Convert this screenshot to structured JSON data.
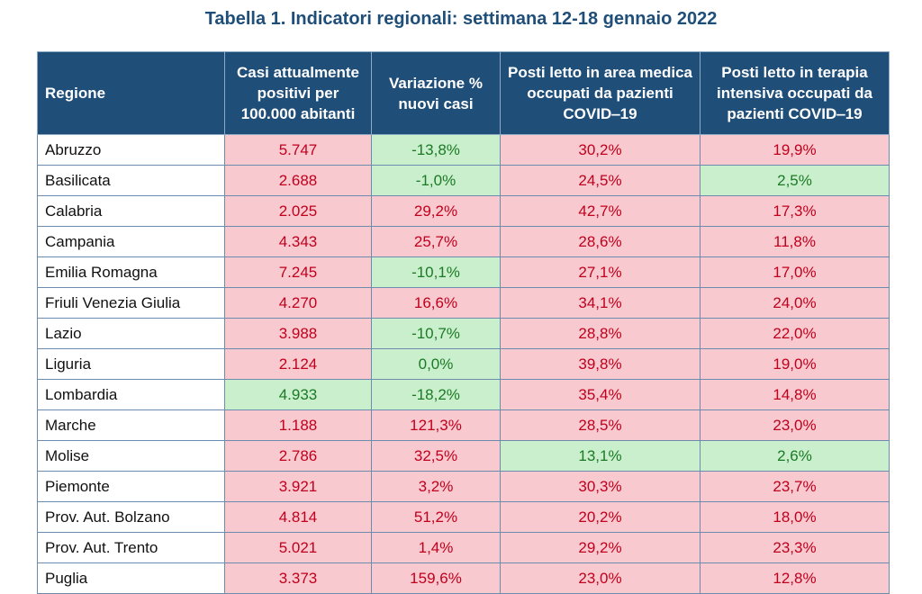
{
  "title": "Tabella 1. Indicatori regionali: settimana 12-18 gennaio 2022",
  "headers": [
    "Regione",
    "Casi attualmente positivi per 100.000 abitanti",
    "Variazione % nuovi casi",
    "Posti letto in area medica occupati da pazienti COVID‒19",
    "Posti letto in terapia intensiva occupati da pazienti COVID‒19"
  ],
  "colors": {
    "header_bg": "#1f4e79",
    "bad_bg": "#f9c9d0",
    "bad_text": "#c0001c",
    "good_bg": "#c9efcc",
    "good_text": "#1c7a26"
  },
  "rows": [
    {
      "region": "Abruzzo",
      "values": [
        "5.747",
        "-13,8%",
        "30,2%",
        "19,9%"
      ],
      "status": [
        "bad",
        "good",
        "bad",
        "bad"
      ]
    },
    {
      "region": "Basilicata",
      "values": [
        "2.688",
        "-1,0%",
        "24,5%",
        "2,5%"
      ],
      "status": [
        "bad",
        "good",
        "bad",
        "good"
      ]
    },
    {
      "region": "Calabria",
      "values": [
        "2.025",
        "29,2%",
        "42,7%",
        "17,3%"
      ],
      "status": [
        "bad",
        "bad",
        "bad",
        "bad"
      ]
    },
    {
      "region": "Campania",
      "values": [
        "4.343",
        "25,7%",
        "28,6%",
        "11,8%"
      ],
      "status": [
        "bad",
        "bad",
        "bad",
        "bad"
      ]
    },
    {
      "region": "Emilia Romagna",
      "values": [
        "7.245",
        "-10,1%",
        "27,1%",
        "17,0%"
      ],
      "status": [
        "bad",
        "good",
        "bad",
        "bad"
      ]
    },
    {
      "region": "Friuli Venezia Giulia",
      "values": [
        "4.270",
        "16,6%",
        "34,1%",
        "24,0%"
      ],
      "status": [
        "bad",
        "bad",
        "bad",
        "bad"
      ]
    },
    {
      "region": "Lazio",
      "values": [
        "3.988",
        "-10,7%",
        "28,8%",
        "22,0%"
      ],
      "status": [
        "bad",
        "good",
        "bad",
        "bad"
      ]
    },
    {
      "region": "Liguria",
      "values": [
        "2.124",
        "0,0%",
        "39,8%",
        "19,0%"
      ],
      "status": [
        "bad",
        "good",
        "bad",
        "bad"
      ]
    },
    {
      "region": "Lombardia",
      "values": [
        "4.933",
        "-18,2%",
        "35,4%",
        "14,8%"
      ],
      "status": [
        "good",
        "good",
        "bad",
        "bad"
      ]
    },
    {
      "region": "Marche",
      "values": [
        "1.188",
        "121,3%",
        "28,5%",
        "23,0%"
      ],
      "status": [
        "bad",
        "bad",
        "bad",
        "bad"
      ]
    },
    {
      "region": "Molise",
      "values": [
        "2.786",
        "32,5%",
        "13,1%",
        "2,6%"
      ],
      "status": [
        "bad",
        "bad",
        "good",
        "good"
      ]
    },
    {
      "region": "Piemonte",
      "values": [
        "3.921",
        "3,2%",
        "30,3%",
        "23,7%"
      ],
      "status": [
        "bad",
        "bad",
        "bad",
        "bad"
      ]
    },
    {
      "region": "Prov. Aut. Bolzano",
      "values": [
        "4.814",
        "51,2%",
        "20,2%",
        "18,0%"
      ],
      "status": [
        "bad",
        "bad",
        "bad",
        "bad"
      ]
    },
    {
      "region": "Prov. Aut. Trento",
      "values": [
        "5.021",
        "1,4%",
        "29,2%",
        "23,3%"
      ],
      "status": [
        "bad",
        "bad",
        "bad",
        "bad"
      ]
    },
    {
      "region": "Puglia",
      "values": [
        "3.373",
        "159,6%",
        "23,0%",
        "12,8%"
      ],
      "status": [
        "bad",
        "bad",
        "bad",
        "bad"
      ]
    }
  ]
}
